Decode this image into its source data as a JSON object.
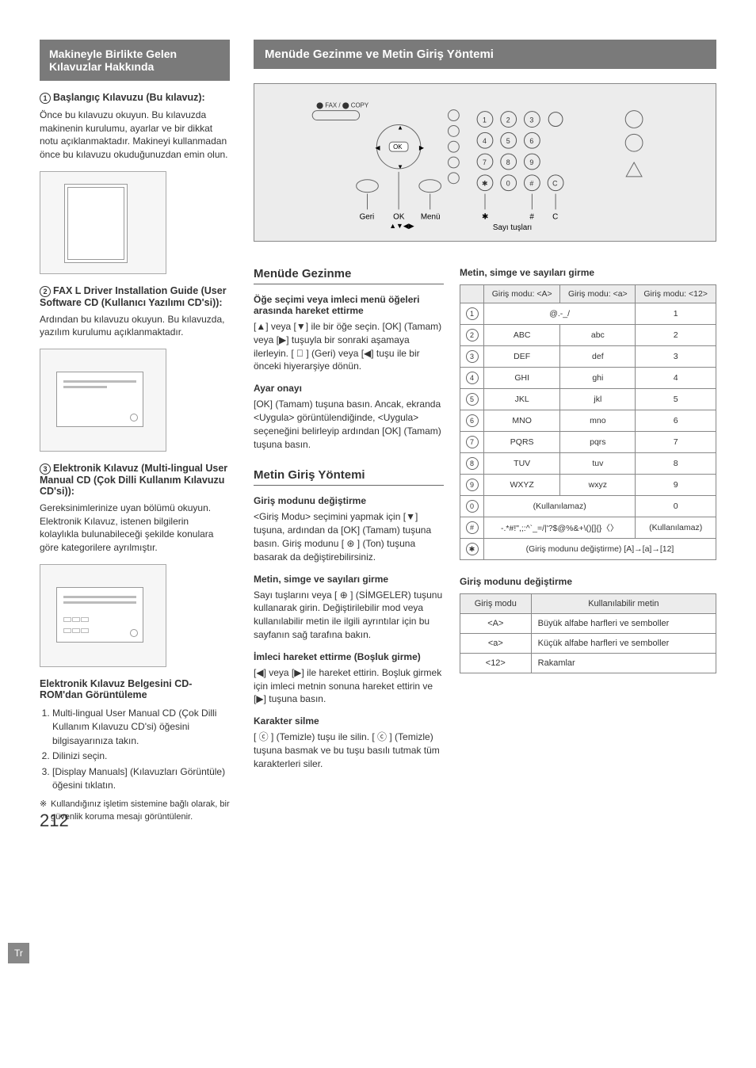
{
  "lang_tab": "Tr",
  "page_number": "212",
  "left": {
    "banner": "Makineyle Birlikte Gelen Kılavuzlar Hakkında",
    "g1_title": "Başlangıç Kılavuzu (Bu kılavuz):",
    "g1_body": "Önce bu kılavuzu okuyun. Bu kılavuzda makinenin kurulumu, ayarlar ve bir dikkat notu açıklanmaktadır. Makineyi kullanmadan önce bu kılavuzu okuduğunuzdan emin olun.",
    "g2_title": "FAX L Driver Installation Guide (User Software CD (Kullanıcı Yazılımı CD'si)):",
    "g2_body": "Ardından bu kılavuzu okuyun. Bu kılavuzda, yazılım kurulumu açıklanmaktadır.",
    "g3_title": "Elektronik Kılavuz (Multi-lingual User Manual CD (Çok Dilli Kullanım Kılavuzu CD'si)):",
    "g3_body": "Gereksinimlerinize uyan bölümü okuyun. Elektronik Kılavuz, istenen bilgilerin kolaylıkla bulunabileceği şekilde konulara göre kategorilere ayrılmıştır.",
    "view_title": "Elektronik Kılavuz Belgesini CD-ROM'dan Görüntüleme",
    "view_steps": [
      "Multi-lingual User Manual CD (Çok Dilli Kullanım Kılavuzu CD'si) öğesini bilgisayarınıza takın.",
      "Dilinizi seçin.",
      "[Display Manuals] (Kılavuzları Görüntüle) öğesini tıklatın."
    ],
    "view_note": "Kullandığınız işletim sistemine bağlı olarak, bir güvenlik koruma mesajı görüntülenir."
  },
  "right": {
    "banner": "Menüde Gezinme ve Metin Giriş Yöntemi",
    "diagram_labels": {
      "geri": "Geri",
      "ok": "OK",
      "menu": "Menü",
      "arrows": "▲▼◀▶",
      "star": "✱",
      "hash": "#",
      "c": "C",
      "numpad_caption": "Sayı tuşları",
      "fax_copy": "FAX / COPY"
    },
    "mid": {
      "h_nav": "Menüde Gezinme",
      "t_sel": "Öğe seçimi veya imleci menü öğeleri arasında hareket ettirme",
      "b_sel": "[▲] veya [▼] ile bir öğe seçin. [OK] (Tamam) veya [▶] tuşuyla bir sonraki aşamaya ilerleyin. [ ⃝ ] (Geri) veya [◀] tuşu ile bir önceki hiyerarşiye dönün.",
      "t_conf": "Ayar onayı",
      "b_conf": "[OK] (Tamam) tuşuna basın. Ancak, ekranda <Uygula> görüntülendiğinde, <Uygula> seçeneğini belirleyip ardından [OK] (Tamam) tuşuna basın.",
      "h_input": "Metin Giriş Yöntemi",
      "t_mode": "Giriş modunu değiştirme",
      "b_mode": "<Giriş Modu> seçimini yapmak için [▼] tuşuna, ardından da [OK] (Tamam) tuşuna basın. Giriş modunu [ ⊛ ] (Ton) tuşuna basarak da değiştirebilirsiniz.",
      "t_chars": "Metin, simge ve sayıları girme",
      "b_chars": "Sayı tuşlarını veya [ ⊕ ] (SİMGELER) tuşunu kullanarak girin. Değiştirilebilir mod veya kullanılabilir metin ile ilgili ayrıntılar için bu sayfanın sağ tarafına bakın.",
      "t_cursor": "İmleci hareket ettirme (Boşluk girme)",
      "b_cursor": "[◀] veya [▶] ile hareket ettirin. Boşluk girmek için imleci metnin sonuna hareket ettirin ve [▶] tuşuna basın.",
      "t_del": "Karakter silme",
      "b_del": "[ ⓒ ] (Temizle) tuşu ile silin. [ ⓒ ] (Temizle) tuşuna basmak ve bu tuşu basılı tutmak tüm karakterleri siler."
    },
    "far": {
      "t_chars": "Metin, simge ve sayıları girme",
      "char_table": {
        "headers": [
          "",
          "Giriş modu: <A>",
          "Giriş modu: <a>",
          "Giriş modu: <12>"
        ],
        "rows": [
          {
            "k": "1",
            "a": "@.-_/",
            "b": "",
            "n": "1",
            "span": true
          },
          {
            "k": "2",
            "a": "ABC",
            "b": "abc",
            "n": "2"
          },
          {
            "k": "3",
            "a": "DEF",
            "b": "def",
            "n": "3"
          },
          {
            "k": "4",
            "a": "GHI",
            "b": "ghi",
            "n": "4"
          },
          {
            "k": "5",
            "a": "JKL",
            "b": "jkl",
            "n": "5"
          },
          {
            "k": "6",
            "a": "MNO",
            "b": "mno",
            "n": "6"
          },
          {
            "k": "7",
            "a": "PQRS",
            "b": "pqrs",
            "n": "7"
          },
          {
            "k": "8",
            "a": "TUV",
            "b": "tuv",
            "n": "8"
          },
          {
            "k": "9",
            "a": "WXYZ",
            "b": "wxyz",
            "n": "9"
          },
          {
            "k": "0",
            "a": "(Kullanılamaz)",
            "b": "",
            "n": "0",
            "span": true
          },
          {
            "k": "#",
            "a": "-.*#!\",;:^`_=/|'?$@%&+\\()[]{}〈〉",
            "b": "",
            "n": "(Kullanılamaz)",
            "span": true
          },
          {
            "k": "✱",
            "a": "(Giriş modunu değiştirme) [A]→[a]→[12]",
            "b": "",
            "n": "",
            "full": true
          }
        ]
      },
      "t_mode": "Giriş modunu değiştirme",
      "mode_table": {
        "headers": [
          "Giriş modu",
          "Kullanılabilir metin"
        ],
        "rows": [
          [
            "<A>",
            "Büyük alfabe harfleri ve semboller"
          ],
          [
            "<a>",
            "Küçük alfabe harfleri ve semboller"
          ],
          [
            "<12>",
            "Rakamlar"
          ]
        ]
      }
    }
  }
}
